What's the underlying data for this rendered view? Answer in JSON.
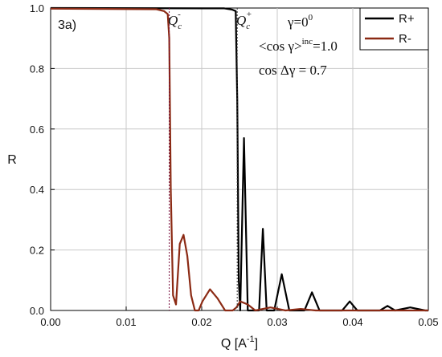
{
  "chart_data": {
    "type": "line",
    "panel_label": "3a)",
    "xlabel": "Q [A",
    "xlabel_sup": "-1",
    "xlabel_end": "]",
    "ylabel": "R",
    "xlim": [
      0.0,
      0.05
    ],
    "ylim": [
      0.0,
      1.0
    ],
    "x_ticks": [
      "0.00",
      "0.01",
      "0.02",
      "0.03",
      "0.04",
      "0.05"
    ],
    "y_ticks": [
      "0.0",
      "0.2",
      "0.4",
      "0.6",
      "0.8",
      "1.0"
    ],
    "grid": true,
    "legend_position": "top-right",
    "colors": {
      "R+": "#000000",
      "R-": "#8b2a14",
      "qc_line": "#7a1040"
    },
    "annotations": {
      "qc_minus": "Q",
      "qc_minus_sub": "c",
      "qc_minus_sup": "-",
      "qc_plus": "Q",
      "qc_plus_sub": "c",
      "qc_plus_sup": "+",
      "gamma": "γ=0",
      "gamma_sup": "0",
      "cos_avg": "<cos γ>",
      "cos_avg_sup": "inc",
      "cos_avg_val": "=1.0",
      "cos_delta": "cos Δγ =  0.7"
    },
    "critical_q": {
      "qc_minus": 0.0157,
      "qc_plus": 0.0247
    },
    "series": [
      {
        "name": "R+",
        "x": [
          0.0,
          0.023,
          0.024,
          0.0245,
          0.0247,
          0.0249,
          0.0251,
          0.0256,
          0.0261,
          0.0266,
          0.0271,
          0.0276,
          0.0281,
          0.0286,
          0.0291,
          0.0296,
          0.0306,
          0.0316,
          0.0326,
          0.0336,
          0.0346,
          0.0356,
          0.0371,
          0.0386,
          0.0396,
          0.0406,
          0.0421,
          0.0436,
          0.0446,
          0.0456,
          0.0476,
          0.0496,
          0.05
        ],
        "y": [
          1.0,
          0.999,
          0.995,
          0.99,
          0.7,
          0.1,
          0.0,
          0.57,
          0.0,
          0.0,
          0.0,
          0.0,
          0.27,
          0.0,
          0.0,
          0.0,
          0.12,
          0.0,
          0.0,
          0.0,
          0.06,
          0.0,
          0.0,
          0.0,
          0.03,
          0.0,
          0.0,
          0.0,
          0.015,
          0.0,
          0.01,
          0.0,
          0.0
        ]
      },
      {
        "name": "R-",
        "x": [
          0.0,
          0.014,
          0.015,
          0.0155,
          0.0157,
          0.0159,
          0.0162,
          0.0166,
          0.0171,
          0.0176,
          0.0181,
          0.0186,
          0.0191,
          0.0196,
          0.0201,
          0.0211,
          0.0221,
          0.0231,
          0.0241,
          0.0246,
          0.0251,
          0.0261,
          0.0271,
          0.0291,
          0.0311,
          0.0331,
          0.0351,
          0.05
        ],
        "y": [
          0.998,
          0.996,
          0.99,
          0.98,
          0.9,
          0.4,
          0.05,
          0.02,
          0.22,
          0.25,
          0.18,
          0.05,
          0.0,
          0.0,
          0.03,
          0.07,
          0.04,
          0.0,
          0.0,
          0.01,
          0.03,
          0.02,
          0.0,
          0.01,
          0.0,
          0.005,
          0.0,
          0.0
        ]
      }
    ]
  }
}
